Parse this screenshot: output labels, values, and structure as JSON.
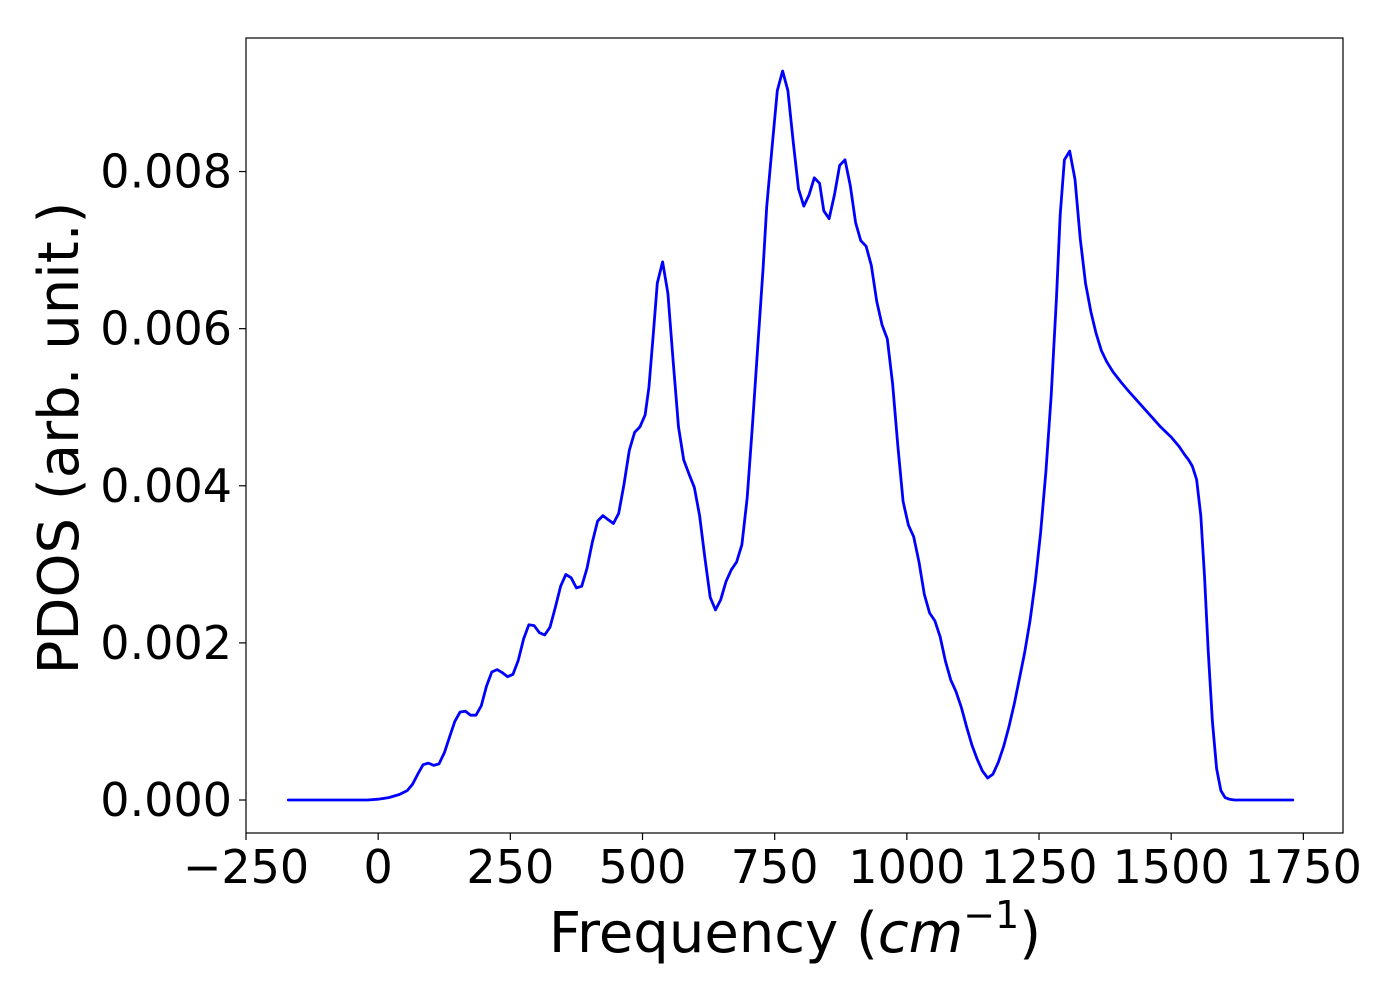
{
  "chart_data": {
    "type": "line",
    "title": "",
    "xlabel_main": "Frequency (",
    "xlabel_math_base": "cm",
    "xlabel_math_exp": "−1",
    "xlabel_close": ")",
    "ylabel": "PDOS (arb. unit.)",
    "xlim": [
      -250,
      1825
    ],
    "ylim": [
      -0.00042,
      0.0097
    ],
    "xticks": [
      -250,
      0,
      250,
      500,
      750,
      1000,
      1250,
      1500,
      1750
    ],
    "xtick_labels": [
      "−250",
      "0",
      "250",
      "500",
      "750",
      "1000",
      "1250",
      "1500",
      "1750"
    ],
    "yticks": [
      0.0,
      0.002,
      0.004,
      0.006,
      0.008
    ],
    "ytick_labels": [
      "0.000",
      "0.002",
      "0.004",
      "0.006",
      "0.008"
    ],
    "grid": false,
    "legend": "none",
    "series": [
      {
        "color": "#0000ff",
        "x": [
          -170,
          -100,
          -50,
          -20,
          0,
          20,
          40,
          55,
          65,
          75,
          85,
          95,
          105,
          115,
          125,
          135,
          145,
          155,
          165,
          175,
          185,
          195,
          205,
          215,
          225,
          235,
          245,
          255,
          265,
          275,
          285,
          295,
          305,
          315,
          325,
          335,
          345,
          355,
          365,
          375,
          385,
          395,
          405,
          415,
          425,
          435,
          445,
          455,
          465,
          475,
          485,
          495,
          505,
          512,
          520,
          528,
          538,
          548,
          558,
          568,
          578,
          588,
          598,
          608,
          618,
          628,
          638,
          648,
          658,
          668,
          678,
          688,
          698,
          708,
          718,
          728,
          735,
          745,
          755,
          765,
          775,
          785,
          795,
          805,
          815,
          825,
          835,
          843,
          853,
          863,
          873,
          883,
          893,
          903,
          913,
          923,
          933,
          943,
          953,
          963,
          973,
          983,
          993,
          1003,
          1013,
          1023,
          1033,
          1043,
          1053,
          1063,
          1073,
          1083,
          1093,
          1103,
          1113,
          1123,
          1133,
          1143,
          1153,
          1163,
          1173,
          1183,
          1193,
          1203,
          1213,
          1223,
          1233,
          1243,
          1253,
          1263,
          1273,
          1283,
          1290,
          1298,
          1308,
          1318,
          1328,
          1338,
          1348,
          1358,
          1368,
          1378,
          1390,
          1405,
          1420,
          1440,
          1460,
          1480,
          1500,
          1515,
          1525,
          1533,
          1540,
          1548,
          1556,
          1563,
          1570,
          1578,
          1586,
          1594,
          1602,
          1610,
          1620,
          1640,
          1680,
          1730
        ],
        "y": [
          0.0,
          0.0,
          0.0,
          0.0,
          1e-05,
          3e-05,
          7e-05,
          0.00012,
          0.0002,
          0.00033,
          0.00045,
          0.00047,
          0.00044,
          0.00046,
          0.0006,
          0.0008,
          0.001,
          0.00112,
          0.00113,
          0.00108,
          0.00108,
          0.0012,
          0.00145,
          0.00163,
          0.00166,
          0.00162,
          0.00157,
          0.0016,
          0.00178,
          0.00205,
          0.00223,
          0.00222,
          0.00213,
          0.0021,
          0.0022,
          0.00245,
          0.00272,
          0.00287,
          0.00283,
          0.0027,
          0.00272,
          0.00295,
          0.00328,
          0.00355,
          0.00362,
          0.00357,
          0.00352,
          0.00365,
          0.00402,
          0.00445,
          0.00468,
          0.00475,
          0.0049,
          0.00525,
          0.0059,
          0.00658,
          0.00685,
          0.00645,
          0.00558,
          0.00475,
          0.00433,
          0.00415,
          0.00398,
          0.00362,
          0.00308,
          0.00258,
          0.00242,
          0.00255,
          0.00278,
          0.00293,
          0.00303,
          0.00325,
          0.00385,
          0.00478,
          0.00578,
          0.00675,
          0.00755,
          0.0083,
          0.00903,
          0.00928,
          0.00903,
          0.00838,
          0.00778,
          0.00756,
          0.0077,
          0.00792,
          0.00785,
          0.0075,
          0.0074,
          0.0077,
          0.00808,
          0.00815,
          0.00782,
          0.00735,
          0.00712,
          0.00705,
          0.0068,
          0.00635,
          0.00605,
          0.00587,
          0.0053,
          0.0045,
          0.0038,
          0.0035,
          0.00335,
          0.00303,
          0.00262,
          0.00238,
          0.00228,
          0.00208,
          0.00177,
          0.00153,
          0.00138,
          0.00118,
          0.00093,
          0.0007,
          0.00052,
          0.00037,
          0.00028,
          0.00033,
          0.00048,
          0.00068,
          0.00093,
          0.00122,
          0.00155,
          0.00188,
          0.00228,
          0.00278,
          0.0034,
          0.00418,
          0.00515,
          0.0064,
          0.00745,
          0.00815,
          0.00826,
          0.0079,
          0.00715,
          0.00658,
          0.00622,
          0.00594,
          0.00572,
          0.00558,
          0.00545,
          0.00532,
          0.0052,
          0.00505,
          0.0049,
          0.00475,
          0.00462,
          0.0045,
          0.0044,
          0.00433,
          0.00425,
          0.00408,
          0.00362,
          0.00285,
          0.0019,
          0.001,
          0.0004,
          0.00012,
          3e-05,
          1e-05,
          0.0,
          0.0,
          0.0,
          0.0
        ]
      }
    ]
  }
}
